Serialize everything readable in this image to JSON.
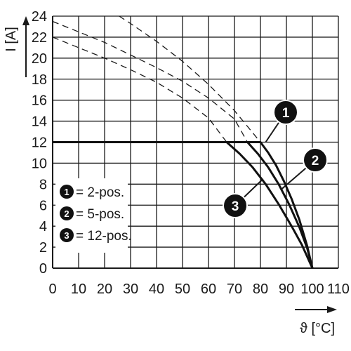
{
  "chart_data": {
    "type": "line",
    "xlabel": "ϑ [°C]",
    "ylabel": "I [A]",
    "xlim": [
      0,
      110
    ],
    "ylim": [
      0,
      24
    ],
    "xticks": [
      0,
      10,
      20,
      30,
      40,
      50,
      60,
      70,
      80,
      90,
      100,
      110
    ],
    "yticks": [
      0,
      2,
      4,
      6,
      8,
      10,
      12,
      14,
      16,
      18,
      20,
      22,
      24
    ],
    "grid": true,
    "legend": {
      "placement": "lower-left",
      "entries": [
        {
          "badge": "1",
          "label": "= 2-pos."
        },
        {
          "badge": "2",
          "label": "= 5-pos."
        },
        {
          "badge": "3",
          "label": "= 12-pos."
        }
      ]
    },
    "derating_curves": [
      {
        "badge": "1",
        "style": "dashed",
        "x": [
          0,
          10,
          20,
          30,
          40,
          50,
          60,
          70,
          80
        ],
        "y": [
          27,
          26.1,
          24.9,
          23.3,
          21.6,
          19.7,
          17.5,
          15,
          12
        ]
      },
      {
        "badge": "2",
        "style": "dashed",
        "x": [
          0,
          10,
          20,
          30,
          40,
          50,
          60,
          70,
          75
        ],
        "y": [
          23.5,
          22.5,
          21.5,
          20.3,
          19.1,
          17.8,
          16.2,
          14.2,
          12
        ]
      },
      {
        "badge": "3",
        "style": "dashed",
        "x": [
          0,
          10,
          20,
          30,
          40,
          50,
          60,
          67
        ],
        "y": [
          22,
          21,
          20,
          18.9,
          17.7,
          16.2,
          14.3,
          12
        ]
      }
    ],
    "series": [
      {
        "badge": "1",
        "style": "solid",
        "x": [
          0,
          80,
          83,
          86,
          89,
          92,
          95,
          98,
          100
        ],
        "y": [
          12,
          12,
          11,
          9.8,
          8.3,
          6.6,
          4.6,
          2.1,
          0
        ]
      },
      {
        "badge": "2",
        "style": "solid",
        "x": [
          0,
          75,
          79,
          83,
          87,
          91,
          95,
          98,
          100
        ],
        "y": [
          12,
          12,
          10.9,
          9.6,
          8,
          6.1,
          3.9,
          1.9,
          0
        ]
      },
      {
        "badge": "3",
        "style": "solid",
        "x": [
          0,
          67,
          72,
          77,
          82,
          87,
          92,
          96,
          100
        ],
        "y": [
          12,
          12,
          10.9,
          9.6,
          8,
          6.1,
          4,
          2.2,
          0
        ]
      }
    ],
    "callouts": [
      {
        "badge": "1",
        "x": 82,
        "y": 12
      },
      {
        "badge": "2",
        "x": 88,
        "y": 7.5
      },
      {
        "badge": "3",
        "x": 81,
        "y": 8.5
      }
    ]
  }
}
